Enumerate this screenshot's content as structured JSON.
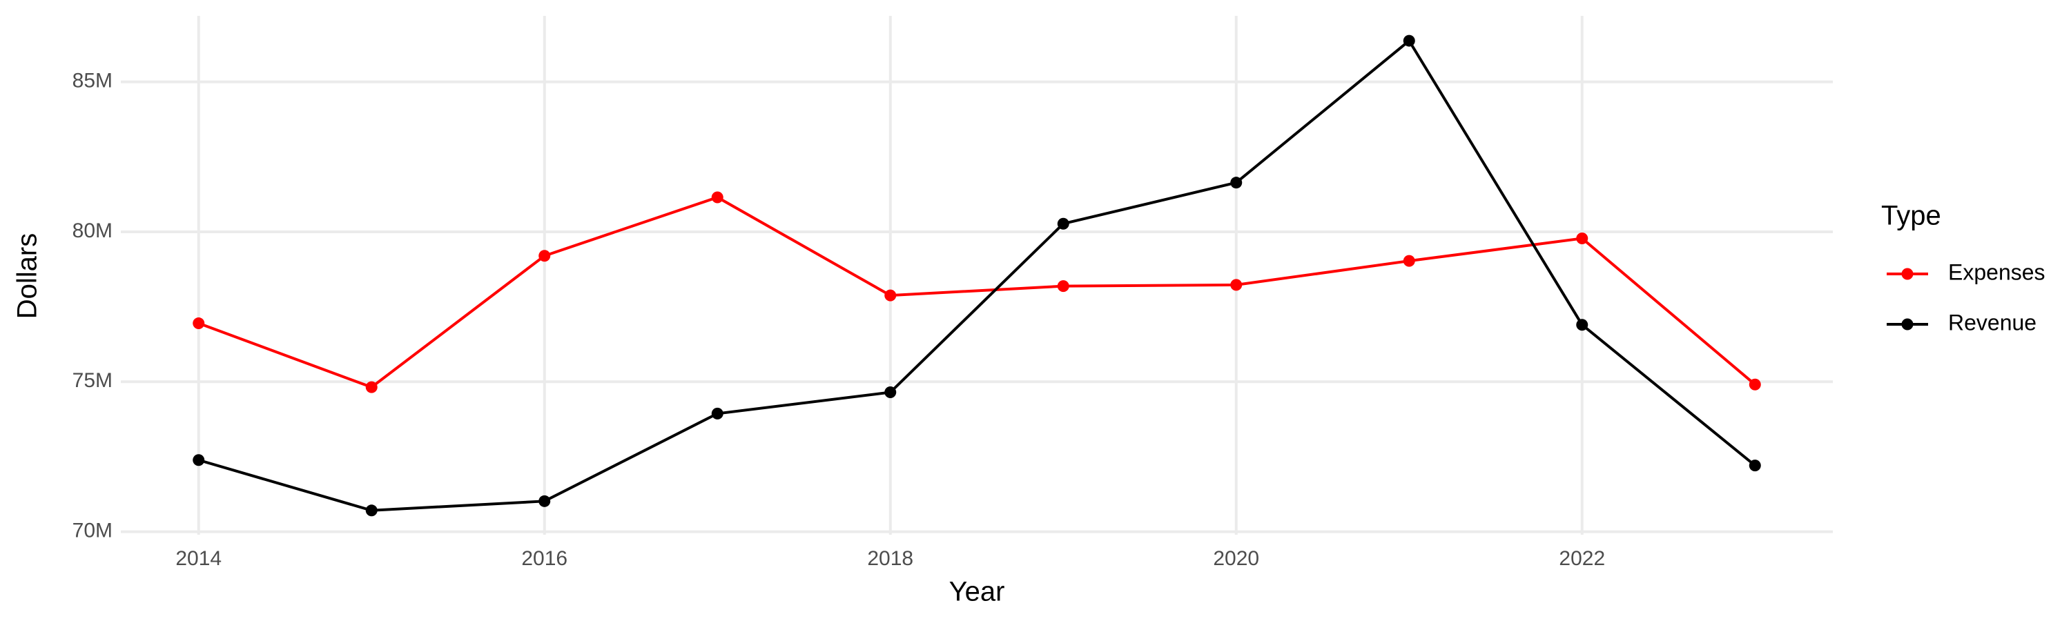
{
  "chart_data": {
    "type": "line",
    "x_label": "Year",
    "y_label": "Dollars",
    "legend_title": "Type",
    "legend_position": "right",
    "grid": true,
    "x": [
      2014,
      2015,
      2016,
      2017,
      2018,
      2019,
      2020,
      2021,
      2022,
      2023
    ],
    "xlim": [
      2013.55,
      2023.45
    ],
    "xticks": [
      2014,
      2016,
      2018,
      2020,
      2022
    ],
    "ylim": [
      69900000,
      87200000
    ],
    "yticks": [
      {
        "value": 70000000,
        "label": "70M"
      },
      {
        "value": 75000000,
        "label": "75M"
      },
      {
        "value": 80000000,
        "label": "80M"
      },
      {
        "value": 85000000,
        "label": "85M"
      }
    ],
    "series": [
      {
        "name": "Expenses",
        "color": "#ff0000",
        "values": [
          76950000,
          74820000,
          79200000,
          81150000,
          77880000,
          78190000,
          78230000,
          79030000,
          79780000,
          74910000
        ]
      },
      {
        "name": "Revenue",
        "color": "#000000",
        "values": [
          72390000,
          70710000,
          71020000,
          73940000,
          74650000,
          80270000,
          81640000,
          86370000,
          76900000,
          72210000
        ]
      }
    ]
  }
}
